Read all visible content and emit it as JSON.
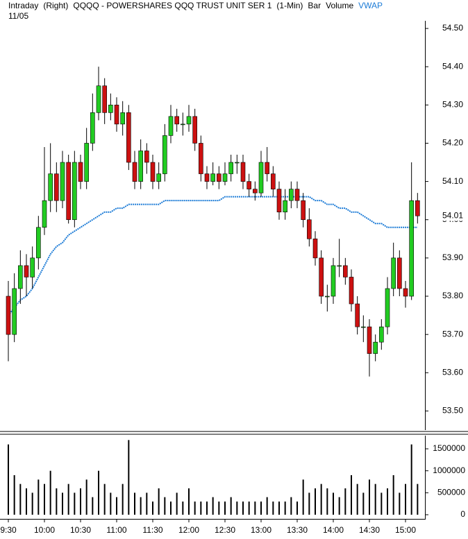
{
  "header": {
    "labels": [
      "Intraday",
      "(Right)",
      "QQQQ - POWERSHARES QQQ TRUST UNIT SER 1",
      "(1-Min)",
      "Bar",
      "Volume"
    ],
    "vwap_label": "VWAP",
    "date": "11/05"
  },
  "chart_data": {
    "type": "candlestick",
    "up_color": "#22cc22",
    "down_color": "#cc1111",
    "vwap_color": "#1a7ad6",
    "volume_color": "#000000",
    "open": [
      53.8,
      53.7,
      53.82,
      53.88,
      53.85,
      53.9,
      53.98,
      54.05,
      54.12,
      54.05,
      54.15,
      54.0,
      54.15,
      54.1,
      54.2,
      54.28,
      54.35,
      54.28,
      54.3,
      54.25,
      54.28,
      54.15,
      54.1,
      54.18,
      54.15,
      54.1,
      54.12,
      54.22,
      54.27,
      54.25,
      54.25,
      54.27,
      54.2,
      54.12,
      54.1,
      54.12,
      54.1,
      54.12,
      54.15,
      54.15,
      54.1,
      54.08,
      54.07,
      54.15,
      54.12,
      54.08,
      54.02,
      54.05,
      54.08,
      54.05,
      54.0,
      53.95,
      53.9,
      53.8,
      53.8,
      53.88,
      53.88,
      53.85,
      53.78,
      53.72,
      53.72,
      53.65,
      53.68,
      53.72,
      53.82,
      53.9,
      53.82,
      53.8,
      54.05
    ],
    "high": [
      53.84,
      53.86,
      53.92,
      53.91,
      53.93,
      54.01,
      54.19,
      54.2,
      54.15,
      54.18,
      54.17,
      54.18,
      54.17,
      54.24,
      54.33,
      54.4,
      54.37,
      54.33,
      54.32,
      54.31,
      54.3,
      54.18,
      54.21,
      54.2,
      54.17,
      54.15,
      54.25,
      54.3,
      54.29,
      54.28,
      54.3,
      54.29,
      54.22,
      54.14,
      54.15,
      54.14,
      54.15,
      54.17,
      54.17,
      54.17,
      54.12,
      54.1,
      54.18,
      54.19,
      54.14,
      54.1,
      54.08,
      54.1,
      54.1,
      54.07,
      54.03,
      53.97,
      53.92,
      53.83,
      53.9,
      53.95,
      53.9,
      53.87,
      53.8,
      53.75,
      53.74,
      53.7,
      53.74,
      53.85,
      53.94,
      53.92,
      53.84,
      54.15,
      54.07
    ],
    "low": [
      53.63,
      53.68,
      53.78,
      53.8,
      53.82,
      53.87,
      53.96,
      54.02,
      54.02,
      54.03,
      53.99,
      53.98,
      54.08,
      54.08,
      54.18,
      54.26,
      54.25,
      54.26,
      54.23,
      54.22,
      54.13,
      54.08,
      54.08,
      54.12,
      54.08,
      54.08,
      54.1,
      54.2,
      54.23,
      54.22,
      54.23,
      54.18,
      54.1,
      54.08,
      54.09,
      54.08,
      54.09,
      54.1,
      54.12,
      54.08,
      54.06,
      54.05,
      54.06,
      54.1,
      54.06,
      54.0,
      54.0,
      54.03,
      54.03,
      53.98,
      53.93,
      53.88,
      53.78,
      53.76,
      53.78,
      53.85,
      53.83,
      53.76,
      53.7,
      53.68,
      53.59,
      53.63,
      53.66,
      53.7,
      53.8,
      53.8,
      53.77,
      53.79,
      53.99
    ],
    "close": [
      53.7,
      53.82,
      53.88,
      53.85,
      53.9,
      53.98,
      54.05,
      54.12,
      54.05,
      54.15,
      54.0,
      54.15,
      54.1,
      54.2,
      54.28,
      54.35,
      54.28,
      54.3,
      54.25,
      54.28,
      54.15,
      54.1,
      54.18,
      54.15,
      54.1,
      54.12,
      54.22,
      54.27,
      54.25,
      54.25,
      54.27,
      54.2,
      54.12,
      54.1,
      54.12,
      54.1,
      54.12,
      54.15,
      54.15,
      54.1,
      54.08,
      54.07,
      54.15,
      54.12,
      54.08,
      54.02,
      54.05,
      54.08,
      54.05,
      54.0,
      53.95,
      53.9,
      53.8,
      53.8,
      53.88,
      53.88,
      53.85,
      53.78,
      53.72,
      53.72,
      53.65,
      53.68,
      53.72,
      53.82,
      53.9,
      53.82,
      53.8,
      54.05,
      54.01
    ],
    "vwap": [
      53.75,
      53.77,
      53.79,
      53.8,
      53.82,
      53.85,
      53.88,
      53.91,
      53.93,
      53.94,
      53.96,
      53.97,
      53.98,
      53.99,
      54.0,
      54.01,
      54.02,
      54.02,
      54.03,
      54.03,
      54.04,
      54.04,
      54.04,
      54.04,
      54.04,
      54.04,
      54.05,
      54.05,
      54.05,
      54.05,
      54.05,
      54.05,
      54.05,
      54.05,
      54.05,
      54.05,
      54.06,
      54.06,
      54.06,
      54.06,
      54.06,
      54.06,
      54.06,
      54.06,
      54.06,
      54.06,
      54.06,
      54.06,
      54.06,
      54.06,
      54.06,
      54.05,
      54.05,
      54.04,
      54.04,
      54.03,
      54.03,
      54.02,
      54.02,
      54.01,
      54.0,
      53.99,
      53.99,
      53.98,
      53.98,
      53.98,
      53.98,
      53.98,
      53.98
    ],
    "volume": [
      1600000,
      900000,
      700000,
      600000,
      500000,
      800000,
      700000,
      1000000,
      600000,
      500000,
      700000,
      500000,
      600000,
      800000,
      400000,
      1000000,
      700000,
      500000,
      400000,
      700000,
      1700000,
      500000,
      400000,
      500000,
      300000,
      600000,
      400000,
      300000,
      500000,
      300000,
      600000,
      300000,
      300000,
      300000,
      400000,
      300000,
      300000,
      400000,
      300000,
      300000,
      300000,
      300000,
      300000,
      400000,
      300000,
      300000,
      300000,
      400000,
      300000,
      800000,
      500000,
      600000,
      700000,
      600000,
      500000,
      400000,
      600000,
      900000,
      700000,
      500000,
      800000,
      700000,
      500000,
      600000,
      900000,
      500000,
      700000,
      1600000,
      700000
    ],
    "xticks": [
      {
        "value": 0,
        "label": "9:30"
      },
      {
        "value": 6,
        "label": "10:00"
      },
      {
        "value": 12,
        "label": "10:30"
      },
      {
        "value": 18,
        "label": "11:00"
      },
      {
        "value": 24,
        "label": "11:30"
      },
      {
        "value": 30,
        "label": "12:00"
      },
      {
        "value": 36,
        "label": "12:30"
      },
      {
        "value": 42,
        "label": "13:00"
      },
      {
        "value": 48,
        "label": "13:30"
      },
      {
        "value": 54,
        "label": "14:00"
      },
      {
        "value": 60,
        "label": "14:30"
      },
      {
        "value": 66,
        "label": "15:00"
      }
    ],
    "ylim": [
      53.45,
      54.52
    ],
    "yticks": [
      {
        "value": 53.5,
        "label": "53.50"
      },
      {
        "value": 53.6,
        "label": "53.60"
      },
      {
        "value": 53.7,
        "label": "53.70"
      },
      {
        "value": 53.8,
        "label": "53.80"
      },
      {
        "value": 53.9,
        "label": "53.90"
      },
      {
        "value": 54.0,
        "label": "54.00"
      },
      {
        "value": 54.1,
        "label": "54.10"
      },
      {
        "value": 54.2,
        "label": "54.20"
      },
      {
        "value": 54.3,
        "label": "54.30"
      },
      {
        "value": 54.4,
        "label": "54.40"
      },
      {
        "value": 54.5,
        "label": "54.50"
      }
    ],
    "last_price": 54.01,
    "volume_ylim": [
      0,
      1800000
    ],
    "volume_yticks": [
      0,
      500000,
      1000000,
      1500000
    ]
  }
}
